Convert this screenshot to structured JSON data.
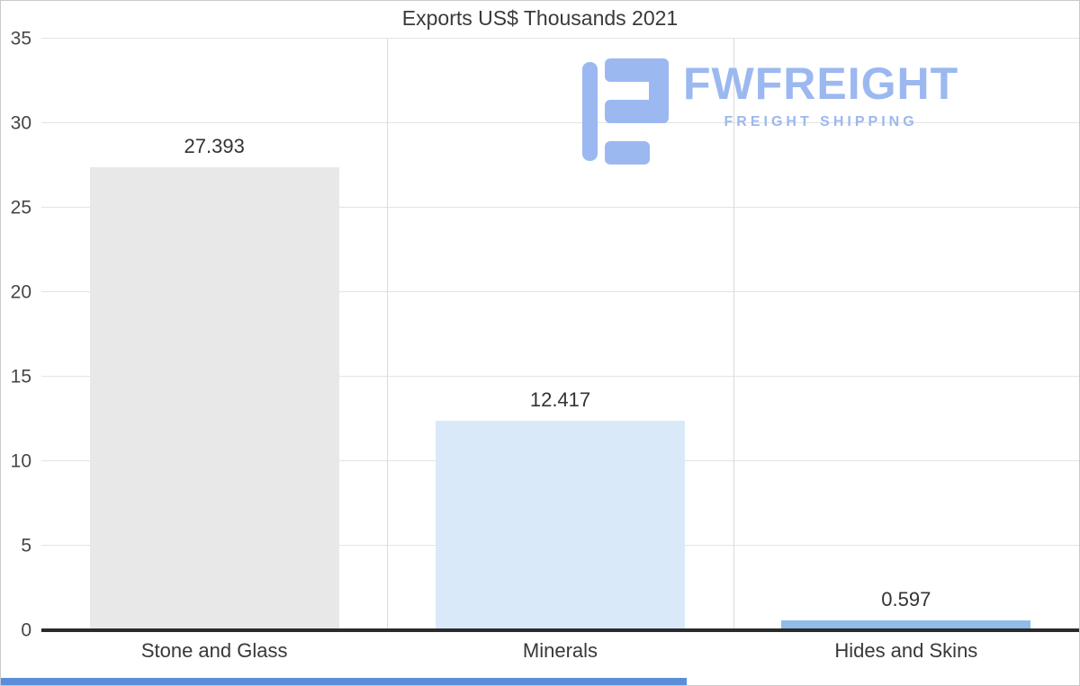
{
  "logo": {
    "brand": "FWFREIGHT",
    "tagline": "FREIGHT SHIPPING",
    "color": "#9cb8f0"
  },
  "chart_data": {
    "type": "bar",
    "title": "Exports US$ Thousands 2021",
    "categories": [
      "Stone and Glass",
      "Minerals",
      "Hides and Skins"
    ],
    "values": [
      27.393,
      12.417,
      0.597
    ],
    "value_labels": [
      "27.393",
      "12.417",
      "0.597"
    ],
    "bar_colors": [
      "#e8e8e8",
      "#d9e9fa",
      "#8fbce9"
    ],
    "xlabel": "",
    "ylabel": "",
    "ylim": [
      0,
      35
    ],
    "yticks": [
      0,
      5,
      10,
      15,
      20,
      25,
      30,
      35
    ],
    "gridlines": "horizontal",
    "legend": "none",
    "axis_line_color": "#2b2b2b"
  }
}
